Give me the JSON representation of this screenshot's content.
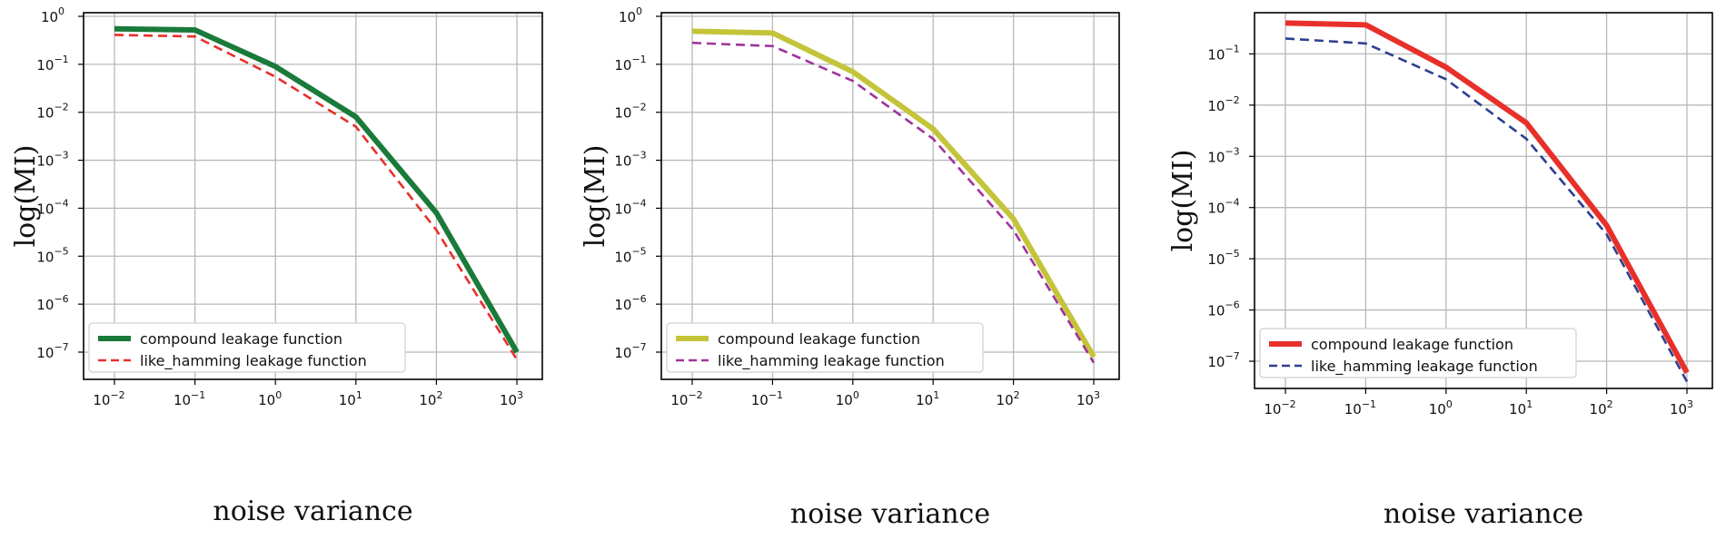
{
  "chart_data": [
    {
      "type": "line",
      "xlabel": "noise variance",
      "ylabel": "log(MI)",
      "xscale": "log",
      "yscale": "log",
      "grid": true,
      "legend_position": "lower-left",
      "xlim": [
        0.01,
        1000
      ],
      "ylim": [
        1e-07,
        1
      ],
      "xticks": [
        {
          "base": "10",
          "exp": "−2"
        },
        {
          "base": "10",
          "exp": "−1"
        },
        {
          "base": "10",
          "exp": "0"
        },
        {
          "base": "10",
          "exp": "1"
        },
        {
          "base": "10",
          "exp": "2"
        },
        {
          "base": "10",
          "exp": "3"
        }
      ],
      "yticks": [
        {
          "base": "10",
          "exp": "0"
        },
        {
          "base": "10",
          "exp": "−1"
        },
        {
          "base": "10",
          "exp": "−2"
        },
        {
          "base": "10",
          "exp": "−3"
        },
        {
          "base": "10",
          "exp": "−4"
        },
        {
          "base": "10",
          "exp": "−5"
        },
        {
          "base": "10",
          "exp": "−6"
        },
        {
          "base": "10",
          "exp": "−7"
        }
      ],
      "x": [
        0.01,
        0.1,
        1,
        10,
        100,
        1000
      ],
      "series": [
        {
          "name": "compound leakage function",
          "color": "#1a7a3a",
          "style": "solid",
          "values": [
            0.55,
            0.52,
            0.09,
            0.008,
            8e-05,
            1e-07
          ]
        },
        {
          "name": "like_hamming leakage function",
          "color": "#e8302a",
          "style": "dashed",
          "values": [
            0.41,
            0.38,
            0.055,
            0.005,
            3.5e-05,
            7e-08
          ]
        }
      ]
    },
    {
      "type": "line",
      "xlabel": "noise variance",
      "ylabel": "log(MI)",
      "xscale": "log",
      "yscale": "log",
      "grid": true,
      "legend_position": "lower-left",
      "xlim": [
        0.01,
        1000
      ],
      "ylim": [
        1e-07,
        1
      ],
      "xticks": [
        {
          "base": "10",
          "exp": "−2"
        },
        {
          "base": "10",
          "exp": "−1"
        },
        {
          "base": "10",
          "exp": "0"
        },
        {
          "base": "10",
          "exp": "1"
        },
        {
          "base": "10",
          "exp": "2"
        },
        {
          "base": "10",
          "exp": "3"
        }
      ],
      "yticks": [
        {
          "base": "10",
          "exp": "0"
        },
        {
          "base": "10",
          "exp": "−1"
        },
        {
          "base": "10",
          "exp": "−2"
        },
        {
          "base": "10",
          "exp": "−3"
        },
        {
          "base": "10",
          "exp": "−4"
        },
        {
          "base": "10",
          "exp": "−5"
        },
        {
          "base": "10",
          "exp": "−6"
        },
        {
          "base": "10",
          "exp": "−7"
        }
      ],
      "x": [
        0.01,
        0.1,
        1,
        10,
        100,
        1000
      ],
      "series": [
        {
          "name": "compound leakage function",
          "color": "#c4c43a",
          "style": "solid",
          "values": [
            0.49,
            0.45,
            0.07,
            0.0045,
            6e-05,
            8e-08
          ]
        },
        {
          "name": "like_hamming leakage function",
          "color": "#a0339a",
          "style": "dashed",
          "values": [
            0.28,
            0.24,
            0.045,
            0.0028,
            3.5e-05,
            6e-08
          ]
        }
      ]
    },
    {
      "type": "line",
      "xlabel": "noise variance",
      "ylabel": "log(MI)",
      "xscale": "log",
      "yscale": "log",
      "grid": true,
      "legend_position": "lower-left",
      "xlim": [
        0.01,
        1000
      ],
      "ylim": [
        1e-07,
        1
      ],
      "xticks": [
        {
          "base": "10",
          "exp": "−2"
        },
        {
          "base": "10",
          "exp": "−1"
        },
        {
          "base": "10",
          "exp": "0"
        },
        {
          "base": "10",
          "exp": "1"
        },
        {
          "base": "10",
          "exp": "2"
        },
        {
          "base": "10",
          "exp": "3"
        }
      ],
      "yticks": [
        {
          "base": "10",
          "exp": "−1"
        },
        {
          "base": "10",
          "exp": "−2"
        },
        {
          "base": "10",
          "exp": "−3"
        },
        {
          "base": "10",
          "exp": "−4"
        },
        {
          "base": "10",
          "exp": "−5"
        },
        {
          "base": "10",
          "exp": "−6"
        },
        {
          "base": "10",
          "exp": "−7"
        }
      ],
      "x": [
        0.01,
        0.1,
        1,
        10,
        100,
        1000
      ],
      "series": [
        {
          "name": "compound leakage function",
          "color": "#e8302a",
          "style": "solid",
          "values": [
            0.4,
            0.37,
            0.055,
            0.0045,
            4.5e-05,
            6e-08
          ]
        },
        {
          "name": "like_hamming leakage function",
          "color": "#2d3f8f",
          "style": "dashed",
          "values": [
            0.2,
            0.16,
            0.032,
            0.0022,
            3e-05,
            4e-08
          ]
        }
      ]
    }
  ]
}
